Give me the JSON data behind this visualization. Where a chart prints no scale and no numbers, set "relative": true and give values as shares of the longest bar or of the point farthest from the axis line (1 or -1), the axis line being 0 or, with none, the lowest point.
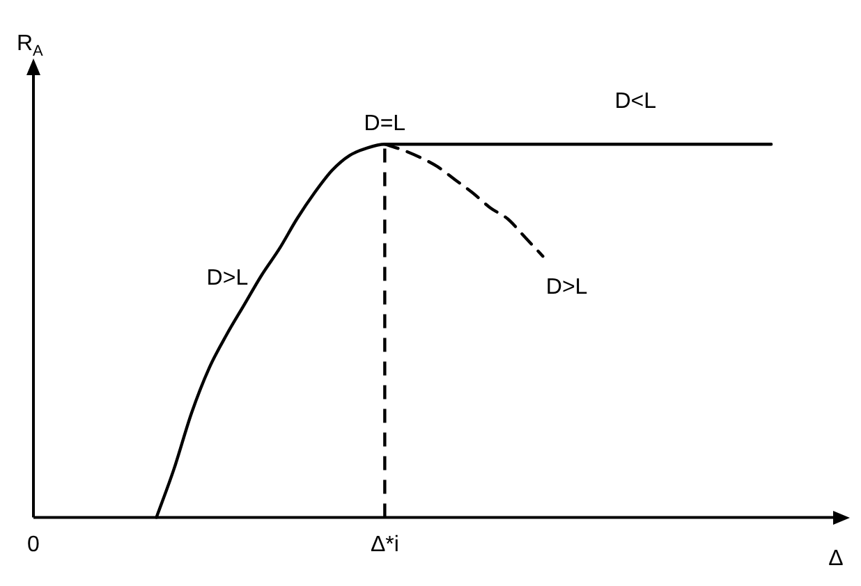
{
  "chart_data": {
    "type": "line",
    "relative": true,
    "xlabel": "Δ",
    "ylabel": "R$_{A}$",
    "categories": [
      "0",
      null,
      null,
      null,
      null,
      null,
      null,
      null,
      null,
      null,
      null,
      null,
      null,
      null,
      null,
      null,
      null,
      null,
      null,
      null,
      "Δ*i",
      null,
      null,
      null,
      null,
      null,
      null,
      null,
      null,
      null,
      null,
      null,
      null,
      null,
      null,
      null,
      null,
      null,
      null,
      null,
      null,
      null,
      null,
      null,
      null,
      null,
      null
    ],
    "tick_labels": "x",
    "grid": false,
    "legend": false,
    "marker": "none",
    "series": [
      {
        "color": "#000000",
        "line_style": "solid",
        "values": [
          null,
          null,
          null,
          null,
          null,
          null,
          null,
          0,
          0.13,
          0.28,
          0.4,
          0.49,
          0.57,
          0.65,
          0.72,
          0.8,
          0.87,
          0.93,
          0.97,
          0.99,
          1,
          1,
          1,
          1,
          1,
          1,
          1,
          1,
          1,
          1,
          1,
          1,
          1,
          1,
          1,
          1,
          1,
          1,
          1,
          1,
          1,
          1,
          1,
          null,
          null,
          null,
          null
        ]
      },
      {
        "color": "#000000",
        "line_style": "dashed",
        "values": [
          null,
          null,
          null,
          null,
          null,
          null,
          null,
          null,
          null,
          null,
          null,
          null,
          null,
          null,
          null,
          null,
          null,
          null,
          null,
          null,
          1,
          0.985,
          0.965,
          0.94,
          0.905,
          0.87,
          0.83,
          0.8,
          0.75,
          0.7,
          null,
          null,
          null,
          null,
          null,
          null,
          null,
          null,
          null,
          null,
          null,
          null,
          null,
          null,
          null,
          null,
          null
        ]
      }
    ],
    "ref_lines": [
      {
        "axis": "x",
        "value": "Δ*i",
        "line_style": "dashed",
        "color": "#000000"
      }
    ],
    "annotations": [
      {
        "text": "D=L",
        "x": "Δ*i",
        "y": 1
      },
      "D<L",
      "D>L",
      "D>L"
    ]
  }
}
